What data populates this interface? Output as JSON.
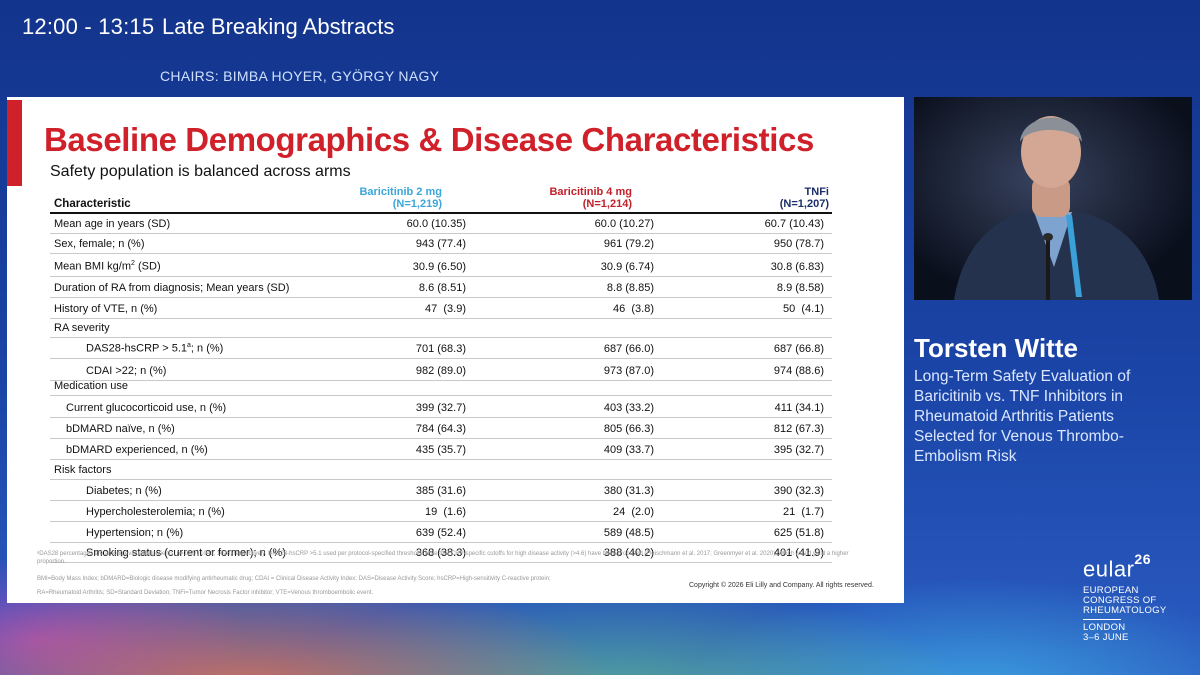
{
  "session": {
    "time": "12:00 - 13:15",
    "title": "Late Breaking Abstracts",
    "chairs": "CHAIRS: BIMBA HOYER, GYÖRGY NAGY"
  },
  "slide": {
    "title": "Baseline Demographics & Disease Characteristics",
    "subtitle": "Safety population is balanced across arms",
    "accent_color": "#d0202a",
    "table": {
      "header": {
        "characteristic": "Characteristic",
        "arm1_name": "Baricitinib 2 mg",
        "arm1_n": "(N=1,219)",
        "arm2_name": "Baricitinib 4 mg",
        "arm2_n": "(N=1,214)",
        "arm3_name": "TNFi",
        "arm3_n": "(N=1,207)"
      },
      "rows": [
        {
          "label": "Mean age in years (SD)",
          "v1": "60.0 (10.35)",
          "v2": "60.0 (10.27)",
          "v3": "60.7 (10.43)"
        },
        {
          "label": "Sex, female; n (%)",
          "v1": "943 (77.4)",
          "v2": "961 (79.2)",
          "v3": "950 (78.7)"
        },
        {
          "label_pre": "Mean BMI kg/m",
          "label_sup": "2",
          "label_post": " (SD)",
          "v1": "30.9 (6.50)",
          "v2": "30.9 (6.74)",
          "v3": "30.8 (6.83)"
        },
        {
          "label": "Duration of RA from diagnosis; Mean years (SD)",
          "v1": "8.6 (8.51)",
          "v2": "8.8 (8.85)",
          "v3": "8.9 (8.58)"
        },
        {
          "label": "History of VTE, n (%)",
          "v1": "47  (3.9)",
          "v2": "46  (3.8)",
          "v3": "50  (4.1)"
        },
        {
          "label": "RA severity",
          "v1": "",
          "v2": "",
          "v3": ""
        },
        {
          "label_pre": "DAS28-hsCRP > 5.1",
          "label_sup": "a",
          "label_post": "; n (%)",
          "v1": "701 (68.3)",
          "v2": "687 (66.0)",
          "v3": "687 (66.8)"
        },
        {
          "label": "CDAI >22; n (%)",
          "v1": "982 (89.0)",
          "v2": "973 (87.0)",
          "v3": "974 (88.6)"
        },
        {
          "label": "Medication use",
          "v1": "",
          "v2": "",
          "v3": ""
        },
        {
          "label": "Current glucocorticoid use, n (%)",
          "v1": "399 (32.7)",
          "v2": "403 (33.2)",
          "v3": "411 (34.1)"
        },
        {
          "label": "bDMARD naïve, n (%)",
          "v1": "784 (64.3)",
          "v2": "805 (66.3)",
          "v3": "812 (67.3)"
        },
        {
          "label": "bDMARD experienced, n (%)",
          "v1": "435 (35.7)",
          "v2": "409 (33.7)",
          "v3": "395 (32.7)"
        },
        {
          "label": "Risk factors",
          "v1": "",
          "v2": "",
          "v3": ""
        },
        {
          "label": "Diabetes; n (%)",
          "v1": "385 (31.6)",
          "v2": "380 (31.3)",
          "v3": "390 (32.3)"
        },
        {
          "label": "Hypercholesterolemia; n (%)",
          "v1": "19  (1.6)",
          "v2": "24  (2.0)",
          "v3": "21  (1.7)"
        },
        {
          "label": "Hypertension; n (%)",
          "v1": "639 (52.4)",
          "v2": "589 (48.5)",
          "v3": "625 (51.8)"
        },
        {
          "label": "Smoking status (current or former); n (%)",
          "v1": "368 (38.3)",
          "v2": "388 (40.2)",
          "v3": "401 (41.9)"
        }
      ]
    },
    "footnotes": [
      "ᵃDAS28 percentages are among evaluable patients, n=1027, 1041, 1028, respectively. DAS28-hsCRP >5.1 used per protocol-specified threshold. Note that CRP-specific cutoffs for high disease activity (>4.6) have been proposed (Fleischmann et al. 2017; Greenmyer et al. 2020), which would yield a higher proportion.",
      "BMI=Body Mass Index; bDMARD=Biologic disease modifying antirheumatic drug; CDAI = Clinical Disease Activity Index; DAS=Disease Activity Score; hsCRP=High-sensitivity C-reactive protein;",
      "RA=Rheumatoid Arthritis; SD=Standard Deviation; TNFi=Tumor Necrosis Factor inhibitor; VTE=Venous thromboembolic event."
    ],
    "copyright": "Copyright © 2026 Eli Lilly and Company. All rights reserved."
  },
  "speaker": {
    "name": "Torsten Witte",
    "talk_title": "Long-Term Safety Evaluation of Baricitinib vs. TNF Inhibitors in Rheumatoid Arthritis Patients Selected for Venous Thrombo-Embolism Risk"
  },
  "branding": {
    "logo": "eular",
    "year": "26",
    "line1": "EUROPEAN",
    "line2": "CONGRESS OF",
    "line3": "RHEUMATOLOGY",
    "city": "LONDON",
    "dates": "3–6 JUNE"
  }
}
